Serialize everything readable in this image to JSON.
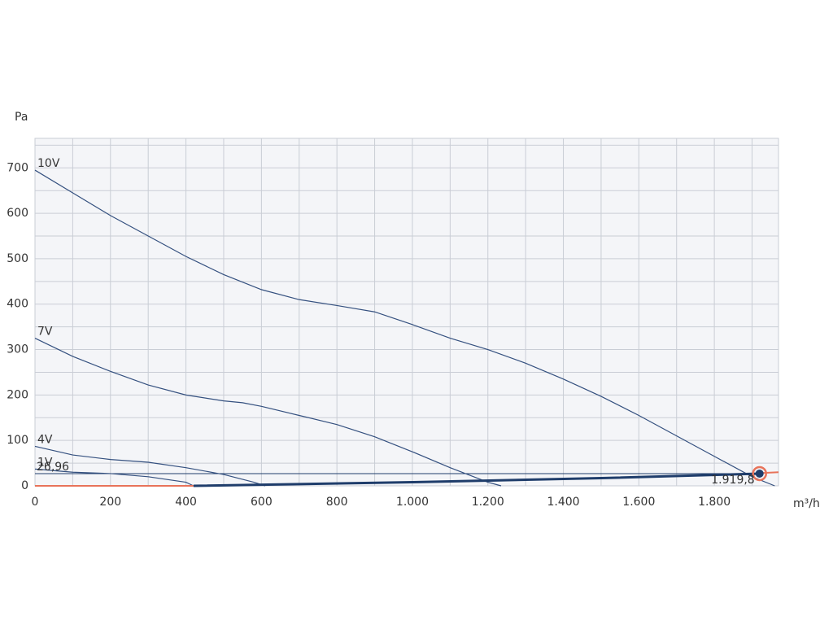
{
  "chart_data": {
    "type": "line",
    "y_axis_label": "Pa",
    "x_axis_label": "m³/h",
    "xlim": [
      0,
      1970
    ],
    "ylim": [
      0,
      765
    ],
    "xticks": [
      0,
      200,
      400,
      600,
      800,
      {
        "value": 1000,
        "label": "1.000"
      },
      {
        "value": 1200,
        "label": "1.200"
      },
      {
        "value": 1400,
        "label": "1.400"
      },
      {
        "value": 1600,
        "label": "1.600"
      },
      {
        "value": 1800,
        "label": "1.800"
      }
    ],
    "yticks": [
      0,
      100,
      200,
      300,
      400,
      500,
      600,
      700
    ],
    "grid": true,
    "minor_grid": true,
    "series": [
      {
        "name": "10V",
        "color": "#34507f",
        "x": [
          0,
          100,
          200,
          300,
          400,
          500,
          600,
          700,
          800,
          900,
          1000,
          1100,
          1200,
          1300,
          1400,
          1500,
          1600,
          1700,
          1800,
          1900,
          1960
        ],
        "values": [
          695,
          645,
          595,
          550,
          505,
          465,
          432,
          410,
          397,
          383,
          355,
          325,
          300,
          270,
          235,
          197,
          155,
          110,
          65,
          20,
          0
        ]
      },
      {
        "name": "7V",
        "color": "#34507f",
        "x": [
          0,
          100,
          200,
          300,
          400,
          500,
          550,
          600,
          700,
          800,
          900,
          1000,
          1100,
          1200,
          1235
        ],
        "values": [
          325,
          285,
          252,
          222,
          200,
          187,
          183,
          175,
          155,
          135,
          108,
          75,
          40,
          8,
          0
        ]
      },
      {
        "name": "4V",
        "color": "#34507f",
        "x": [
          0,
          100,
          200,
          300,
          400,
          500,
          580,
          610
        ],
        "values": [
          87,
          68,
          58,
          52,
          40,
          25,
          8,
          0
        ]
      },
      {
        "name": "1V",
        "color": "#34507f",
        "x": [
          0,
          100,
          200,
          300,
          400,
          420
        ],
        "values": [
          37,
          30,
          27,
          20,
          8,
          0
        ]
      }
    ],
    "system_curve": {
      "color": "#1f3d6b",
      "x": [
        420,
        1000,
        1500,
        1919.8
      ],
      "values": [
        0,
        8,
        17,
        26.96
      ]
    },
    "system_extension": {
      "color": "#e8735a",
      "x": [
        0,
        420
      ],
      "values": [
        0,
        0
      ]
    },
    "operating_extension": {
      "color": "#e8735a",
      "x": [
        1919.8,
        1970
      ],
      "values": [
        28,
        30
      ]
    },
    "operating_point": {
      "x": 1919.8,
      "y": 26.96,
      "x_label": "1.919,8",
      "y_label": "26,96",
      "color": "#1f3d6b",
      "ring_color": "#e8735a"
    }
  }
}
